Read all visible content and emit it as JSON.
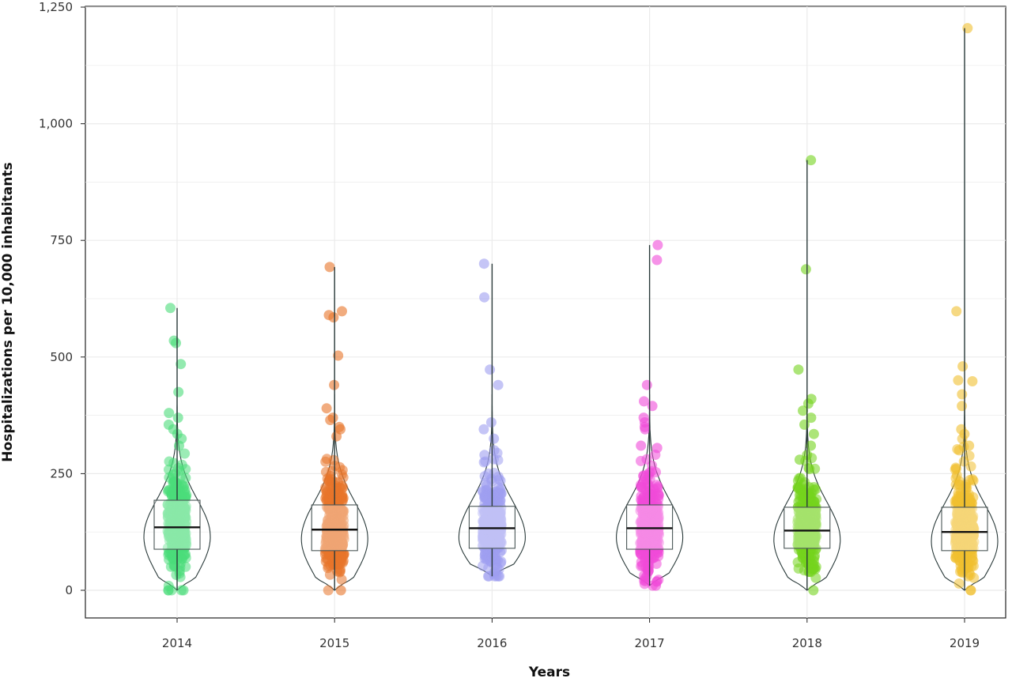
{
  "chart_data": {
    "type": "violin-box-jitter",
    "xlabel": "Years",
    "ylabel": "Hospitalizations per 10,000 inhabitants",
    "ylim": [
      -60,
      1250
    ],
    "yticks": [
      0,
      250,
      500,
      750,
      1000,
      1250
    ],
    "ytick_labels": [
      "0",
      "250",
      "500",
      "750",
      "1,000",
      "1,250"
    ],
    "grid": true,
    "legend": "none",
    "categories": [
      "2014",
      "2015",
      "2016",
      "2017",
      "2018",
      "2019"
    ],
    "colors": [
      "#4bdc7a",
      "#e8742a",
      "#9f9ff0",
      "#f04ad8",
      "#74d41e",
      "#f0c030"
    ],
    "series": [
      {
        "category": "2014",
        "min": 0,
        "q1": 88,
        "median": 135,
        "q3": 193,
        "max": 605,
        "outliers": [
          605,
          535,
          530,
          485,
          425,
          380,
          370,
          355,
          345,
          335,
          325,
          310
        ]
      },
      {
        "category": "2015",
        "min": 0,
        "q1": 85,
        "median": 130,
        "q3": 183,
        "max": 693,
        "outliers": [
          693,
          598,
          590,
          585,
          503,
          440,
          390,
          370,
          365,
          350,
          345,
          330
        ]
      },
      {
        "category": "2016",
        "min": 30,
        "q1": 90,
        "median": 133,
        "q3": 180,
        "max": 700,
        "outliers": [
          700,
          628,
          473,
          440,
          360,
          345,
          325,
          300,
          290
        ]
      },
      {
        "category": "2017",
        "min": 10,
        "q1": 88,
        "median": 133,
        "q3": 183,
        "max": 740,
        "outliers": [
          740,
          708,
          440,
          405,
          395,
          370,
          360,
          350,
          345,
          310,
          305
        ]
      },
      {
        "category": "2018",
        "min": 0,
        "q1": 90,
        "median": 128,
        "q3": 178,
        "max": 922,
        "outliers": [
          922,
          688,
          473,
          410,
          400,
          385,
          370,
          355,
          335,
          310,
          290,
          280
        ]
      },
      {
        "category": "2019",
        "min": 0,
        "q1": 85,
        "median": 125,
        "q3": 178,
        "max": 1205,
        "outliers": [
          1205,
          598,
          480,
          450,
          448,
          420,
          395,
          345,
          335,
          310,
          300
        ]
      }
    ]
  }
}
